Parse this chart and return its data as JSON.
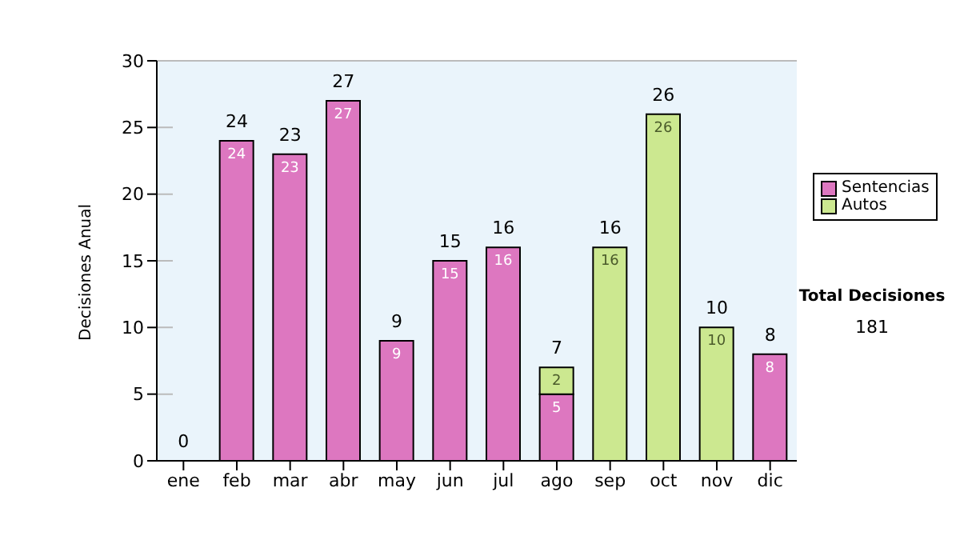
{
  "chart_data": {
    "type": "bar",
    "stacked": true,
    "ylabel": "Decisiones Anual",
    "categories": [
      "ene",
      "feb",
      "mar",
      "abr",
      "may",
      "jun",
      "jul",
      "ago",
      "sep",
      "oct",
      "nov",
      "dic"
    ],
    "series": [
      {
        "name": "Sentencias",
        "color": "#dd77c0",
        "values": [
          0,
          24,
          23,
          27,
          9,
          15,
          16,
          5,
          0,
          0,
          0,
          8
        ],
        "value_labels": [
          null,
          "24",
          "23",
          "27",
          "9",
          "15",
          "16",
          "5",
          null,
          null,
          null,
          "8"
        ]
      },
      {
        "name": "Autos",
        "color": "#cce890",
        "values": [
          0,
          0,
          0,
          0,
          0,
          0,
          0,
          2,
          16,
          26,
          10,
          0
        ],
        "value_labels": [
          null,
          null,
          null,
          null,
          null,
          null,
          null,
          "2",
          "16",
          "26",
          "10",
          null
        ]
      }
    ],
    "totals": [
      "0",
      "24",
      "23",
      "27",
      "9",
      "15",
      "16",
      "7",
      "16",
      "26",
      "10",
      "8"
    ],
    "ylim": [
      0,
      30
    ],
    "yticks": [
      0,
      5,
      10,
      15,
      20,
      25,
      30
    ],
    "grid": "y",
    "legend": "right",
    "annotations": [
      "Total Decisiones",
      "181"
    ]
  }
}
